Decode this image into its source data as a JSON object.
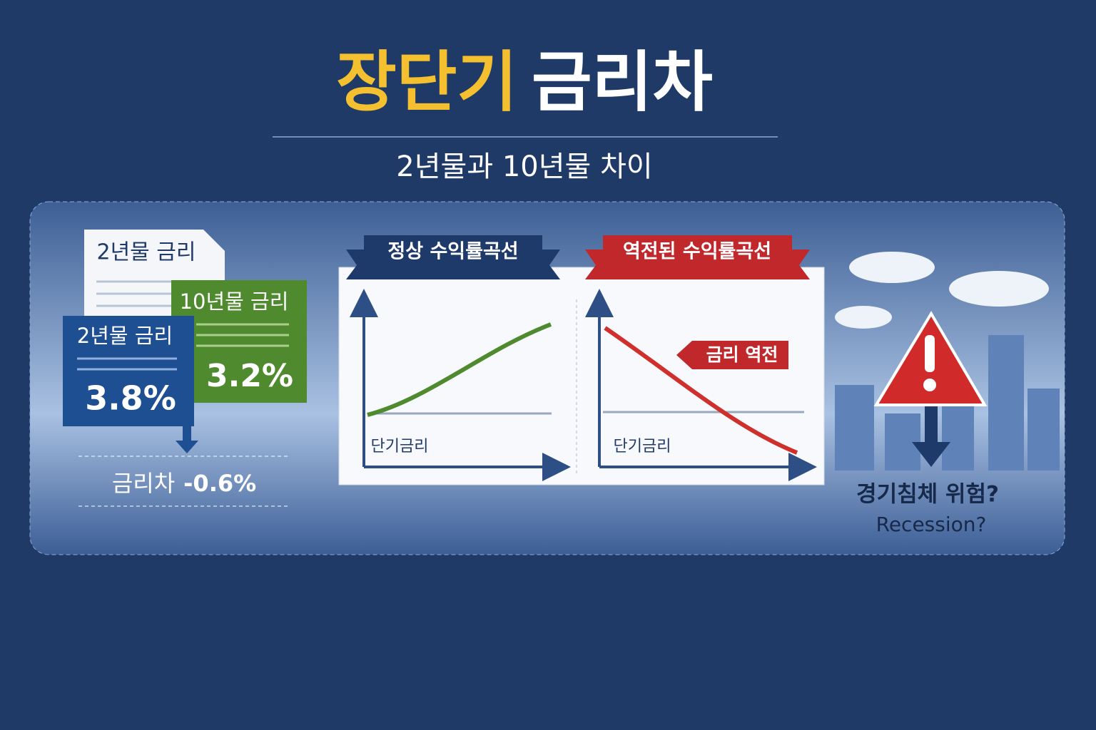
{
  "header": {
    "title_highlight": "장단기",
    "title_rest": "금리차",
    "subtitle": "2년물과 10년물 차이"
  },
  "rates": {
    "paper_label": "2년물 금리",
    "long_label": "10년물 금리",
    "long_value": "3.2%",
    "short_label": "2년물 금리",
    "short_value": "3.8%",
    "spread_label": "금리차",
    "spread_value": "-0.6%"
  },
  "normal_curve": {
    "title": "정상 수익률곡선",
    "axis_label": "단기금리"
  },
  "inverted_curve": {
    "title": "역전된 수익률곡선",
    "callout": "금리 역전",
    "axis_label": "단기금리"
  },
  "warning": {
    "text": "경기침체 위험?",
    "english": "Recession?"
  }
}
